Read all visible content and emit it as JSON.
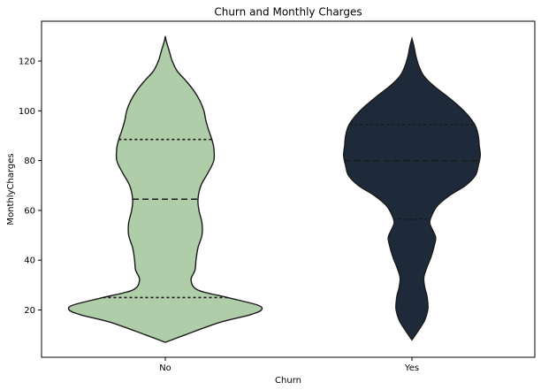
{
  "chart_data": {
    "type": "violin",
    "title": "Churn and Monthly Charges",
    "xlabel": "Churn",
    "ylabel": "MonthlyCharges",
    "categories": [
      "No",
      "Yes"
    ],
    "ylim": [
      1,
      136
    ],
    "yticks": [
      20,
      40,
      60,
      80,
      100,
      120
    ],
    "grid": false,
    "colors": {
      "No": "#b0cdaa",
      "Yes": "#1e2a3a",
      "outline": "#1a1a1a"
    },
    "series": [
      {
        "category": "No",
        "quartiles": {
          "q1": 25,
          "median": 64.5,
          "q3": 88.5
        },
        "density": [
          [
            7,
            0.0
          ],
          [
            10,
            0.2
          ],
          [
            15,
            0.55
          ],
          [
            18,
            0.85
          ],
          [
            20,
            0.97
          ],
          [
            22,
            0.93
          ],
          [
            25,
            0.63
          ],
          [
            28,
            0.33
          ],
          [
            32,
            0.26
          ],
          [
            36,
            0.3
          ],
          [
            40,
            0.31
          ],
          [
            45,
            0.33
          ],
          [
            50,
            0.37
          ],
          [
            55,
            0.37
          ],
          [
            60,
            0.34
          ],
          [
            64.5,
            0.33
          ],
          [
            70,
            0.36
          ],
          [
            75,
            0.43
          ],
          [
            80,
            0.49
          ],
          [
            85,
            0.49
          ],
          [
            88.5,
            0.47
          ],
          [
            92,
            0.44
          ],
          [
            96,
            0.41
          ],
          [
            100,
            0.39
          ],
          [
            104,
            0.35
          ],
          [
            108,
            0.29
          ],
          [
            112,
            0.21
          ],
          [
            116,
            0.12
          ],
          [
            120,
            0.07
          ],
          [
            124,
            0.04
          ],
          [
            128,
            0.01
          ],
          [
            130,
            0.0
          ]
        ]
      },
      {
        "category": "Yes",
        "quartiles": {
          "q1": 56.5,
          "median": 80,
          "q3": 94.5
        },
        "density": [
          [
            8,
            0.0
          ],
          [
            12,
            0.07
          ],
          [
            16,
            0.13
          ],
          [
            20,
            0.16
          ],
          [
            23,
            0.16
          ],
          [
            26,
            0.15
          ],
          [
            29,
            0.13
          ],
          [
            33,
            0.12
          ],
          [
            37,
            0.15
          ],
          [
            41,
            0.19
          ],
          [
            45,
            0.22
          ],
          [
            49,
            0.24
          ],
          [
            52,
            0.21
          ],
          [
            55,
            0.18
          ],
          [
            58,
            0.2
          ],
          [
            62,
            0.26
          ],
          [
            66,
            0.38
          ],
          [
            70,
            0.54
          ],
          [
            74,
            0.64
          ],
          [
            78,
            0.67
          ],
          [
            82,
            0.69
          ],
          [
            86,
            0.68
          ],
          [
            90,
            0.67
          ],
          [
            94,
            0.64
          ],
          [
            98,
            0.57
          ],
          [
            102,
            0.47
          ],
          [
            106,
            0.35
          ],
          [
            110,
            0.22
          ],
          [
            114,
            0.12
          ],
          [
            118,
            0.07
          ],
          [
            122,
            0.04
          ],
          [
            126,
            0.02
          ],
          [
            129,
            0.0
          ]
        ]
      }
    ]
  }
}
